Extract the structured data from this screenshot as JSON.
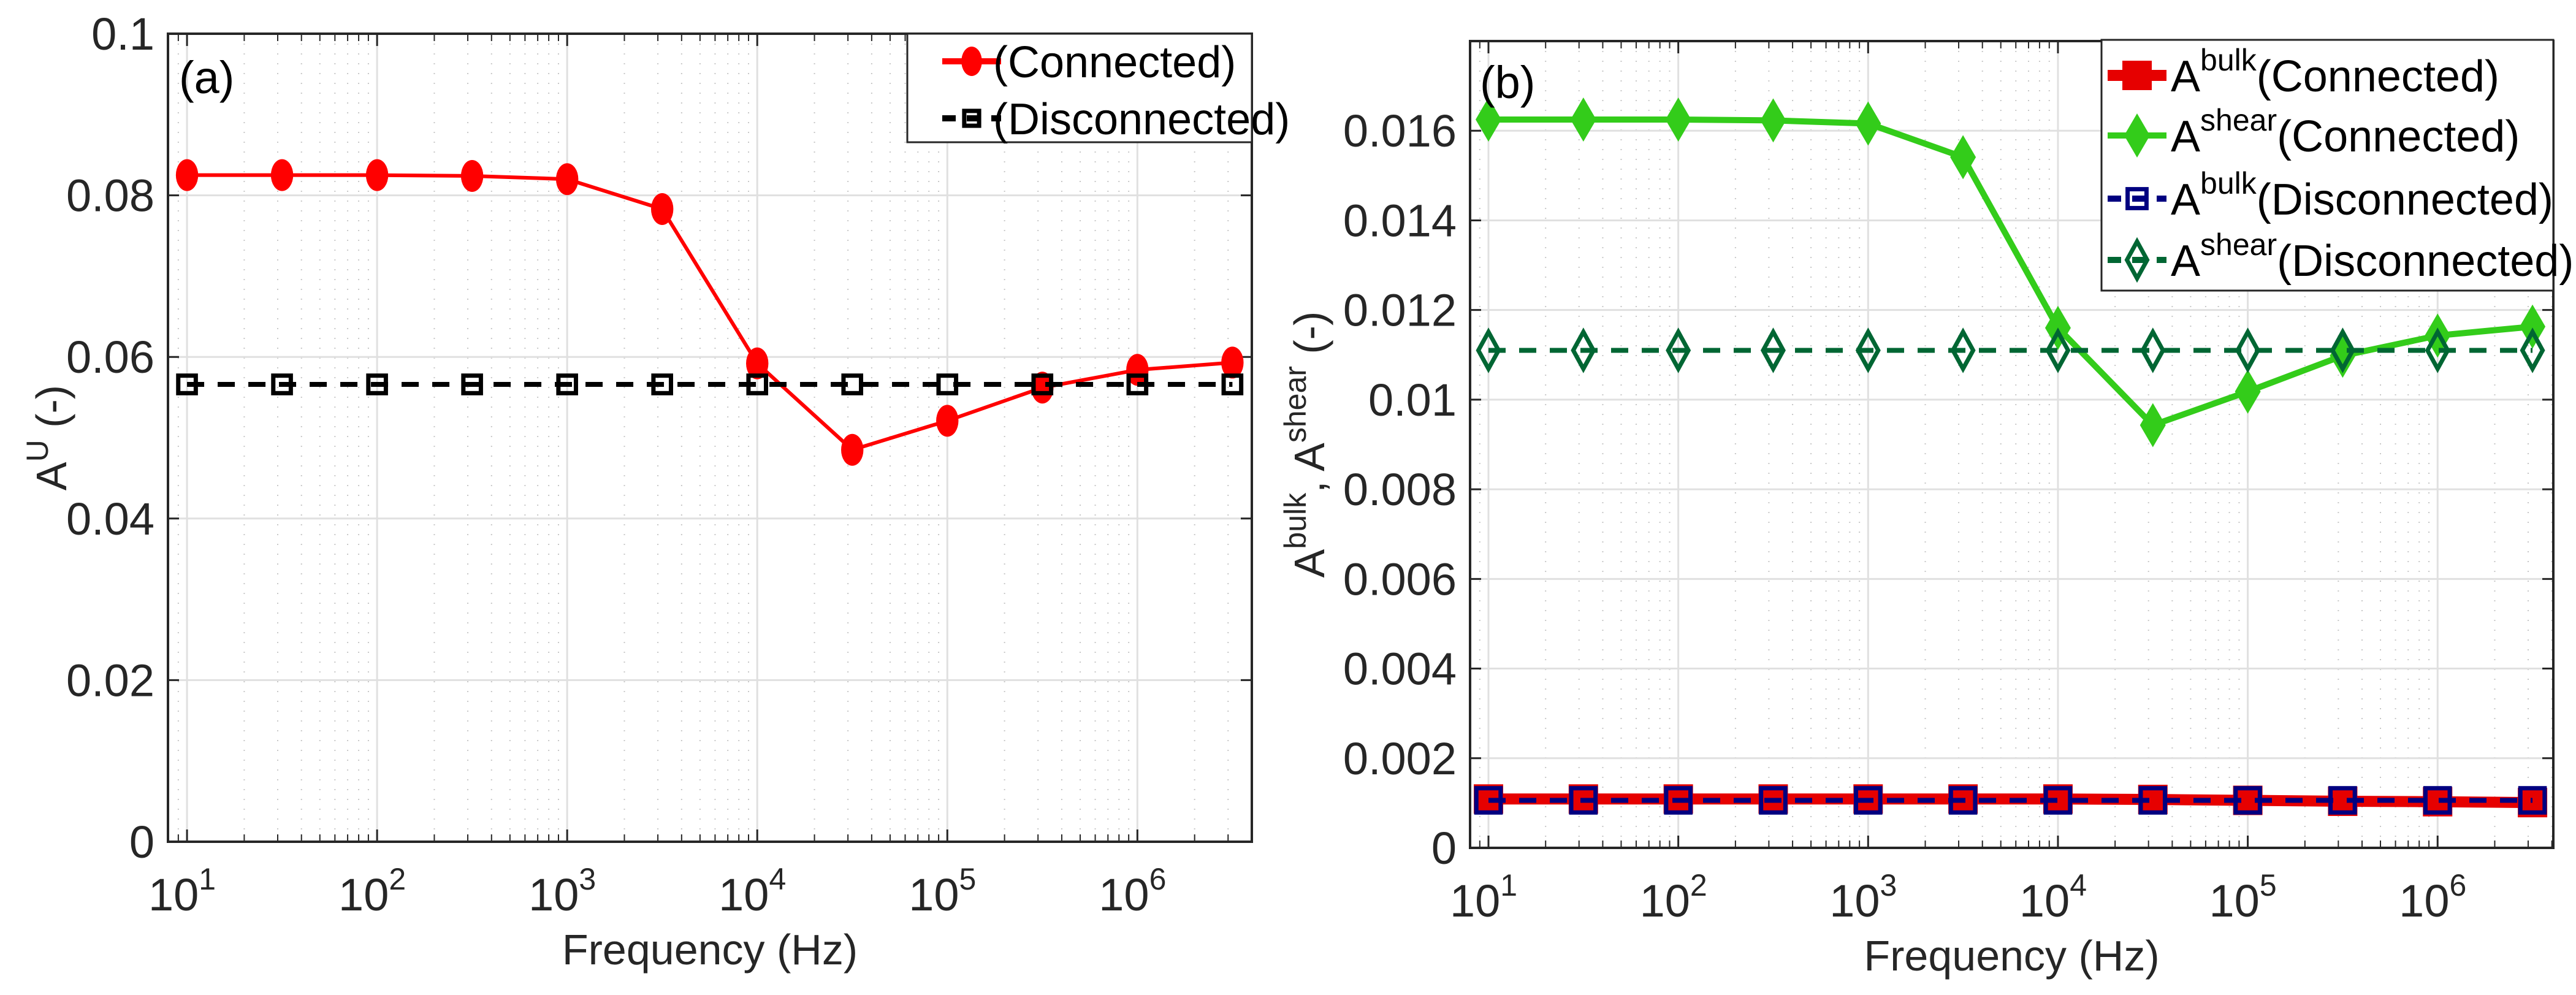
{
  "figure": {
    "panels": [
      "a",
      "b"
    ]
  },
  "chart_data": [
    {
      "type": "line",
      "panel_tag": "(a)",
      "title": "",
      "xlabel": "Frequency (Hz)",
      "ylabel": {
        "base": "A",
        "sup": "U",
        "suffix": " (-)"
      },
      "xscale": "log",
      "xlim": [
        7.94,
        4000000
      ],
      "ylim": [
        0,
        0.1
      ],
      "xticks": [
        10,
        100,
        1000,
        10000,
        100000,
        1000000
      ],
      "xtick_labels": [
        {
          "base": "10",
          "exp": "1"
        },
        {
          "base": "10",
          "exp": "2"
        },
        {
          "base": "10",
          "exp": "3"
        },
        {
          "base": "10",
          "exp": "4"
        },
        {
          "base": "10",
          "exp": "5"
        },
        {
          "base": "10",
          "exp": "6"
        }
      ],
      "yticks": [
        0,
        0.02,
        0.04,
        0.06,
        0.08,
        0.1
      ],
      "ytick_labels": [
        "0",
        "0.02",
        "0.04",
        "0.06",
        "0.08",
        "0.1"
      ],
      "grid": true,
      "minor_grid": true,
      "legend_position": "top-right",
      "x": [
        10,
        31.62,
        100,
        316.2,
        1000,
        3162,
        10000,
        31620,
        100000,
        316200,
        1000000,
        3162000
      ],
      "series": [
        {
          "name": "(Connected)",
          "legend_label": {
            "base": "",
            "sup": "",
            "text": "(Connected)"
          },
          "color": "#ff0000",
          "marker": "circle-filled",
          "line": "solid",
          "values": [
            0.0825,
            0.0825,
            0.0825,
            0.0824,
            0.082,
            0.0783,
            0.0592,
            0.0485,
            0.0521,
            0.0562,
            0.0584,
            0.0593
          ]
        },
        {
          "name": "(Disconnected)",
          "legend_label": {
            "base": "",
            "sup": "",
            "text": "(Disconnected)"
          },
          "color": "#000000",
          "marker": "square-open",
          "line": "dashed",
          "values": [
            0.0566,
            0.0566,
            0.0566,
            0.0566,
            0.0566,
            0.0566,
            0.0566,
            0.0566,
            0.0566,
            0.0566,
            0.0566,
            0.0566
          ]
        }
      ]
    },
    {
      "type": "line",
      "panel_tag": "(b)",
      "title": "",
      "xlabel": "Frequency (Hz)",
      "ylabel": {
        "parts": [
          {
            "base": "A",
            "sup": "bulk"
          },
          {
            "base": ", A",
            "sup": "shear"
          }
        ],
        "suffix": " (-)"
      },
      "xscale": "log",
      "xlim": [
        8.0,
        4070000
      ],
      "ylim": [
        0,
        0.018
      ],
      "xticks": [
        10,
        100,
        1000,
        10000,
        100000,
        1000000
      ],
      "xtick_labels": [
        {
          "base": "10",
          "exp": "1"
        },
        {
          "base": "10",
          "exp": "2"
        },
        {
          "base": "10",
          "exp": "3"
        },
        {
          "base": "10",
          "exp": "4"
        },
        {
          "base": "10",
          "exp": "5"
        },
        {
          "base": "10",
          "exp": "6"
        }
      ],
      "yticks": [
        0,
        0.002,
        0.004,
        0.006,
        0.008,
        0.01,
        0.012,
        0.014,
        0.016
      ],
      "ytick_labels": [
        "0",
        "0.002",
        "0.004",
        "0.006",
        "0.008",
        "0.01",
        "0.012",
        "0.014",
        "0.016"
      ],
      "grid": true,
      "minor_grid": true,
      "legend_position": "top-right",
      "x": [
        10,
        31.62,
        100,
        316.2,
        1000,
        3162,
        10000,
        31620,
        100000,
        316200,
        1000000,
        3162000
      ],
      "series": [
        {
          "name": "A^bulk (Connected)",
          "legend_label": {
            "base": "A",
            "sup": "bulk",
            "text": "(Connected)"
          },
          "color": "#e60000",
          "marker": "square-filled",
          "line": "solid",
          "values": [
            0.00109,
            0.00109,
            0.00109,
            0.00109,
            0.00109,
            0.00109,
            0.00109,
            0.00108,
            0.00106,
            0.00104,
            0.00103,
            0.00101
          ]
        },
        {
          "name": "A^shear (Connected)",
          "legend_label": {
            "base": "A",
            "sup": "shear",
            "text": "(Connected)"
          },
          "color": "#33cc1a",
          "marker": "diamond-filled",
          "line": "solid",
          "values": [
            0.01625,
            0.01625,
            0.01625,
            0.01623,
            0.01616,
            0.01541,
            0.0116,
            0.00943,
            0.01018,
            0.01098,
            0.01143,
            0.01163
          ]
        },
        {
          "name": "A^bulk (Disconnected)",
          "legend_label": {
            "base": "A",
            "sup": "bulk",
            "text": "(Disconnected)"
          },
          "color": "#000080",
          "marker": "square-open",
          "line": "dashed",
          "values": [
            0.00106,
            0.00106,
            0.00106,
            0.00106,
            0.00106,
            0.00106,
            0.00106,
            0.00106,
            0.00106,
            0.00106,
            0.00106,
            0.00106
          ]
        },
        {
          "name": "A^shear (Disconnected)",
          "legend_label": {
            "base": "A",
            "sup": "shear",
            "text": "(Disconnected)"
          },
          "color": "#006633",
          "marker": "diamond-open",
          "line": "dashed",
          "values": [
            0.0111,
            0.0111,
            0.0111,
            0.0111,
            0.0111,
            0.0111,
            0.0111,
            0.0111,
            0.0111,
            0.0111,
            0.0111,
            0.0111
          ]
        }
      ]
    }
  ]
}
